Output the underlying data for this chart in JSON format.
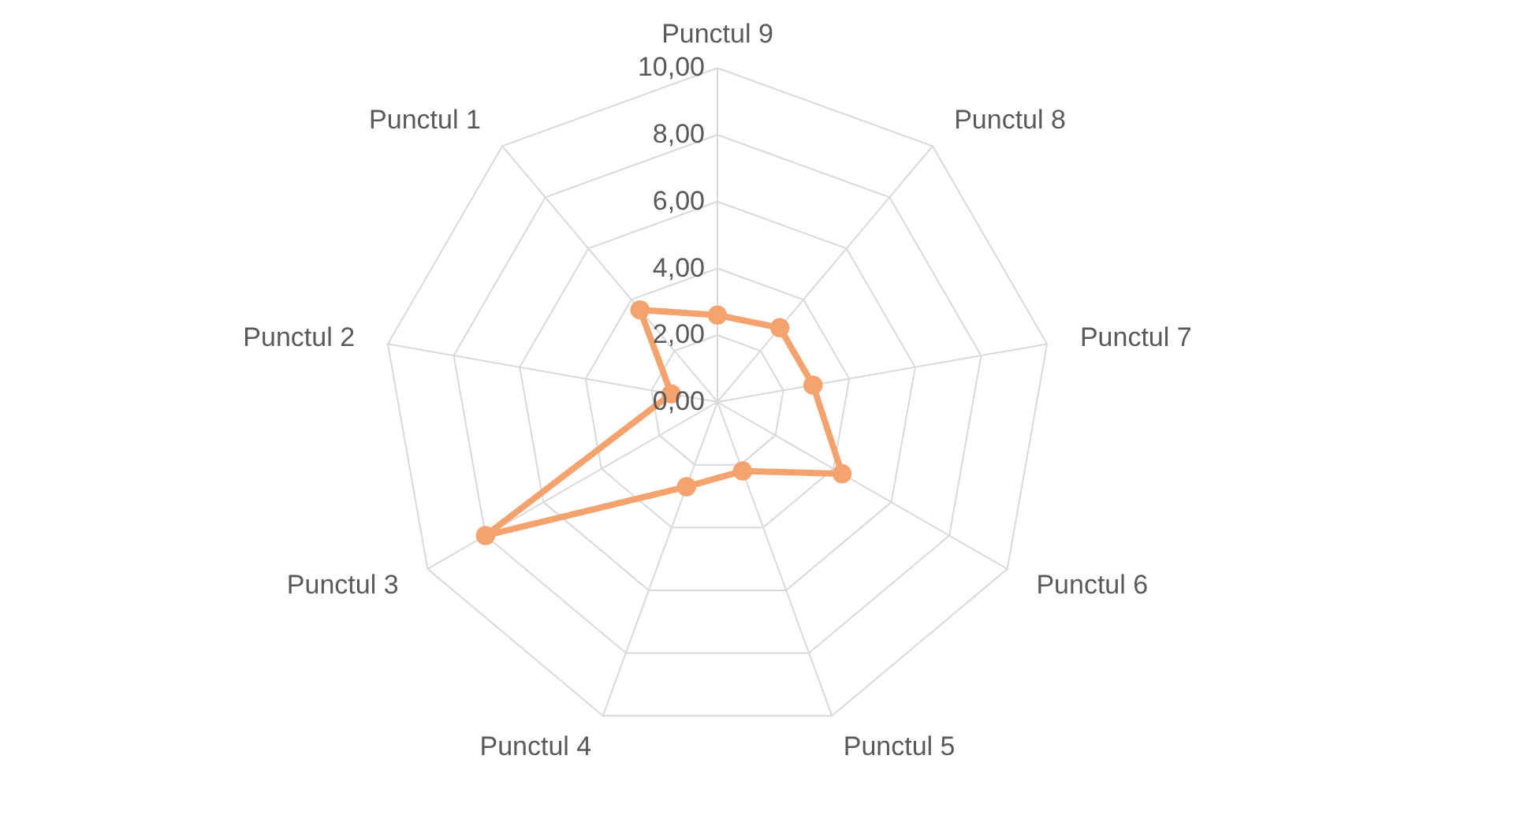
{
  "chart_data": {
    "type": "radar",
    "categories": [
      "Punctul 9",
      "Punctul 8",
      "Punctul 7",
      "Punctul 6",
      "Punctul 5",
      "Punctul 4",
      "Punctul 3",
      "Punctul 2",
      "Punctul 1"
    ],
    "series": [
      {
        "color": "#f5a36e",
        "values": [
          2.6,
          2.9,
          2.9,
          4.3,
          2.2,
          2.7,
          8.0,
          1.4,
          3.6
        ]
      }
    ],
    "ylim": [
      0,
      10
    ],
    "yticks": [
      {
        "value": 0,
        "label": "0,00"
      },
      {
        "value": 2,
        "label": "2,00"
      },
      {
        "value": 4,
        "label": "4,00"
      },
      {
        "value": 6,
        "label": "6,00"
      },
      {
        "value": 8,
        "label": "8,00"
      },
      {
        "value": 10,
        "label": "10,00"
      }
    ],
    "grid": true,
    "marker": "circle",
    "line_style": "solid",
    "legend": false
  }
}
